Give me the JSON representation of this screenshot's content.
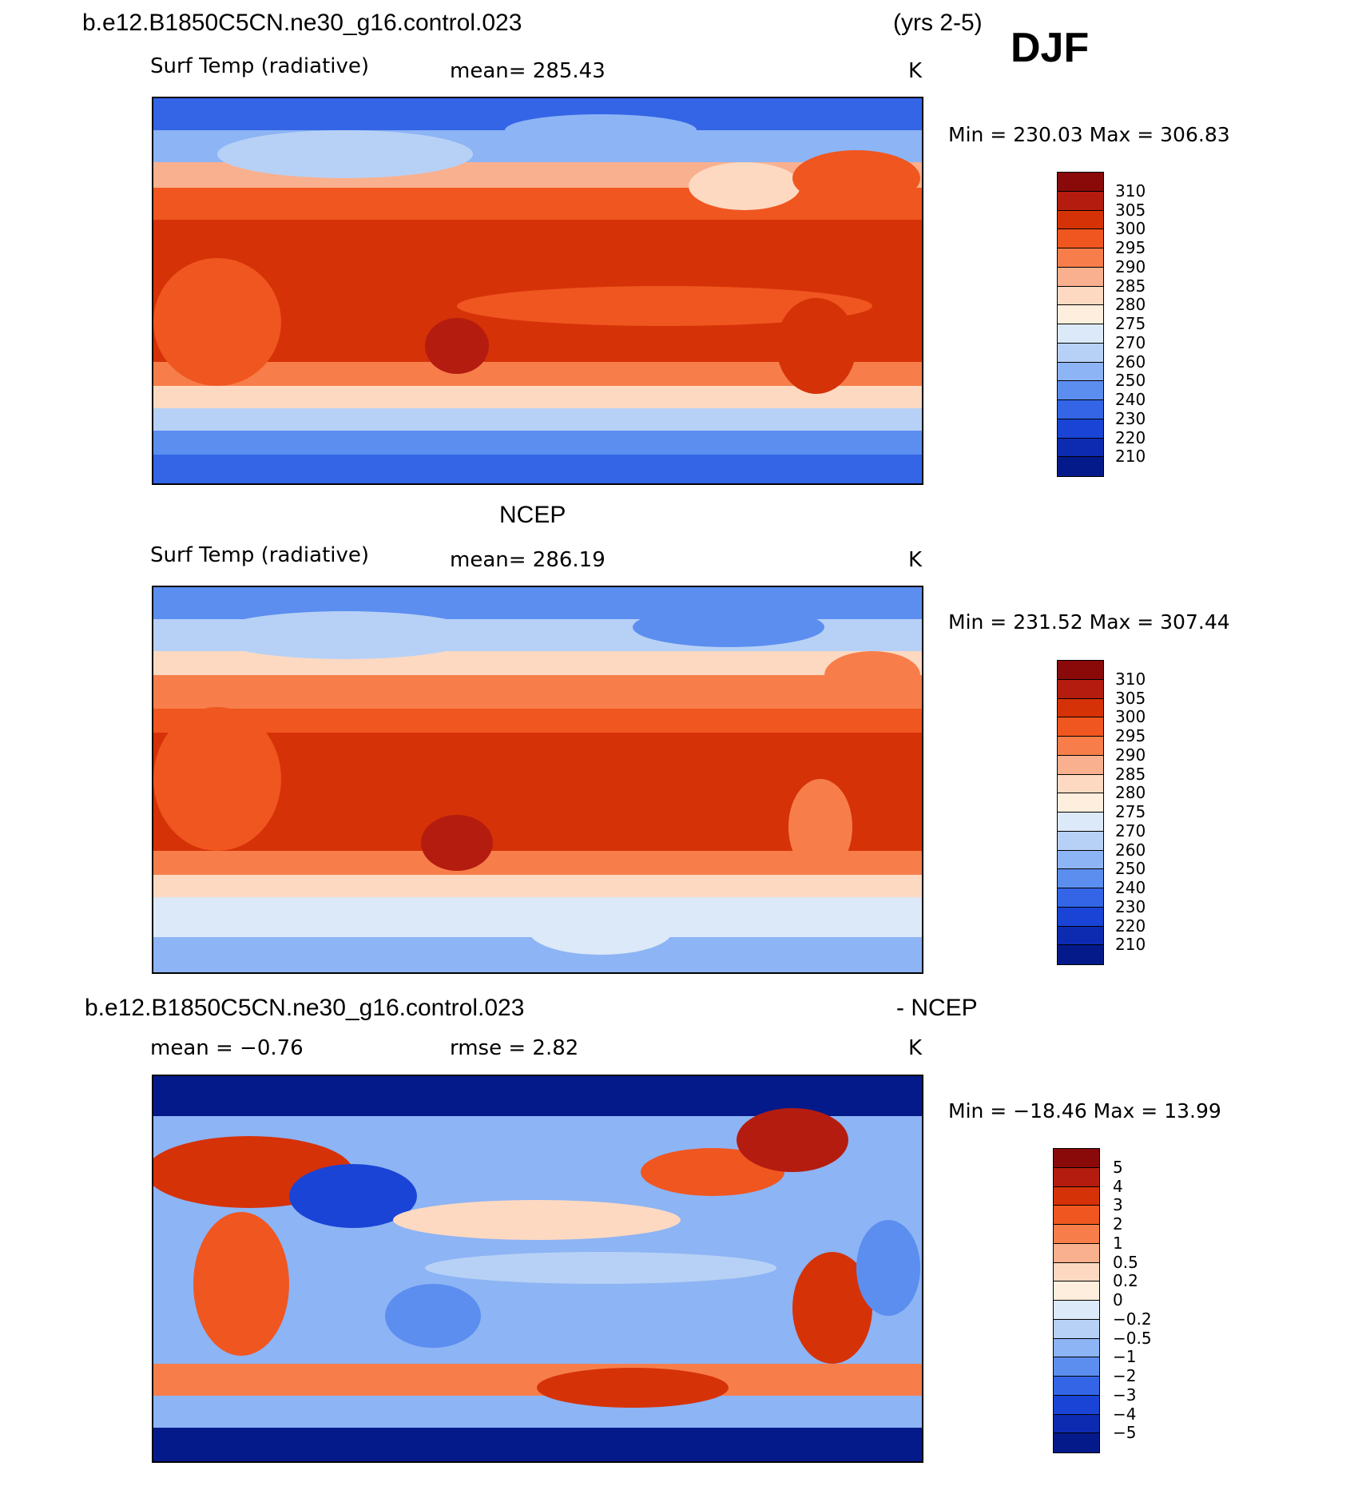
{
  "header": {
    "case_name": "b.e12.B1850C5CN.ne30_g16.control.023",
    "years": "(yrs 2-5)",
    "season": "DJF"
  },
  "panels": [
    {
      "id": "model",
      "title_left": "",
      "variable": "Surf Temp (radiative)",
      "stat": "mean=  285.43",
      "units": "K",
      "minmax": "Min  =  230.03  Max  =  306.83",
      "colorbar_labels": [
        "310",
        "305",
        "300",
        "295",
        "290",
        "285",
        "280",
        "275",
        "270",
        "260",
        "250",
        "240",
        "230",
        "220",
        "210"
      ],
      "colorbar_colors": [
        "#8a0a0a",
        "#b51c10",
        "#d63208",
        "#f0561f",
        "#f77e4a",
        "#f9b08e",
        "#fdd9c2",
        "#fdeedd",
        "#dbe9f8",
        "#b7d1f6",
        "#8db4f4",
        "#5c8ef0",
        "#3365e6",
        "#1a44d6",
        "#0c2bb0",
        "#051a8a"
      ]
    },
    {
      "id": "obs",
      "title_left": "NCEP",
      "variable": "Surf Temp (radiative)",
      "stat": "mean=  286.19",
      "units": "K",
      "minmax": "Min  =  231.52  Max  =  307.44",
      "colorbar_labels": [
        "310",
        "305",
        "300",
        "295",
        "290",
        "285",
        "280",
        "275",
        "270",
        "260",
        "250",
        "240",
        "230",
        "220",
        "210"
      ],
      "colorbar_colors": [
        "#8a0a0a",
        "#b51c10",
        "#d63208",
        "#f0561f",
        "#f77e4a",
        "#f9b08e",
        "#fdd9c2",
        "#fdeedd",
        "#dbe9f8",
        "#b7d1f6",
        "#8db4f4",
        "#5c8ef0",
        "#3365e6",
        "#1a44d6",
        "#0c2bb0",
        "#051a8a"
      ]
    },
    {
      "id": "diff",
      "title_left": "b.e12.B1850C5CN.ne30_g16.control.023",
      "title_right": "- NCEP",
      "stat_left": "mean =    −0.76",
      "stat": "rmse =     2.82",
      "units": "K",
      "minmax": "Min  =  −18.46  Max  =    13.99",
      "colorbar_labels": [
        "5",
        "4",
        "3",
        "2",
        "1",
        "0.5",
        "0.2",
        "0",
        "−0.2",
        "−0.5",
        "−1",
        "−2",
        "−3",
        "−4",
        "−5"
      ],
      "colorbar_colors": [
        "#8a0a0a",
        "#b51c10",
        "#d63208",
        "#f0561f",
        "#f77e4a",
        "#f9b08e",
        "#fdd9c2",
        "#fdeedd",
        "#dbe9f8",
        "#b7d1f6",
        "#8db4f4",
        "#5c8ef0",
        "#3365e6",
        "#1a44d6",
        "#0c2bb0",
        "#051a8a"
      ]
    }
  ]
}
